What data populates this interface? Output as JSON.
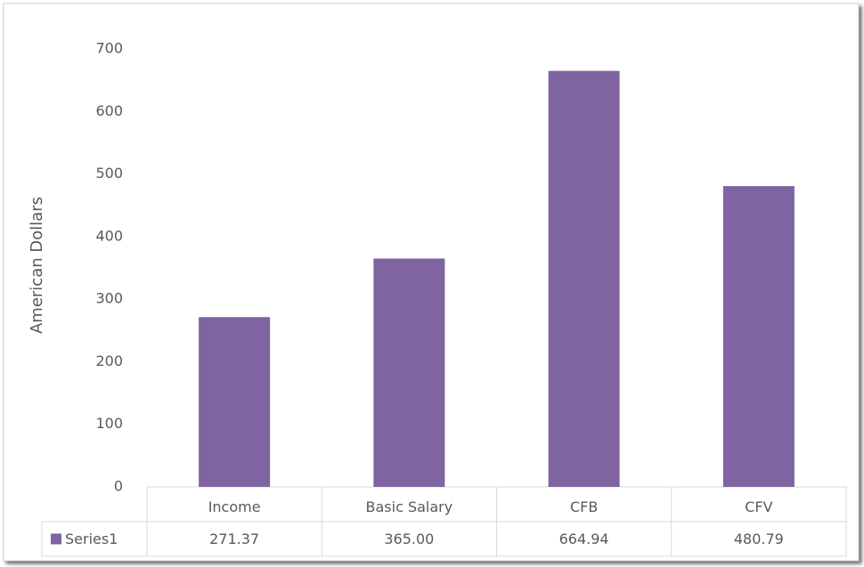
{
  "chart_data": {
    "type": "bar",
    "y_label": "American Dollars",
    "categories": [
      "Income",
      "Basic Salary",
      "CFB",
      "CFV"
    ],
    "series": [
      {
        "name": "Series1",
        "color": "#8064a2",
        "values": [
          271.37,
          365.0,
          664.94,
          480.79
        ],
        "value_labels": [
          "271.37",
          "365.00",
          "664.94",
          "480.79"
        ]
      }
    ],
    "ylim": [
      0,
      700
    ],
    "yticks": [
      0,
      100,
      200,
      300,
      400,
      500,
      600,
      700
    ],
    "grid": false,
    "data_table": true
  }
}
